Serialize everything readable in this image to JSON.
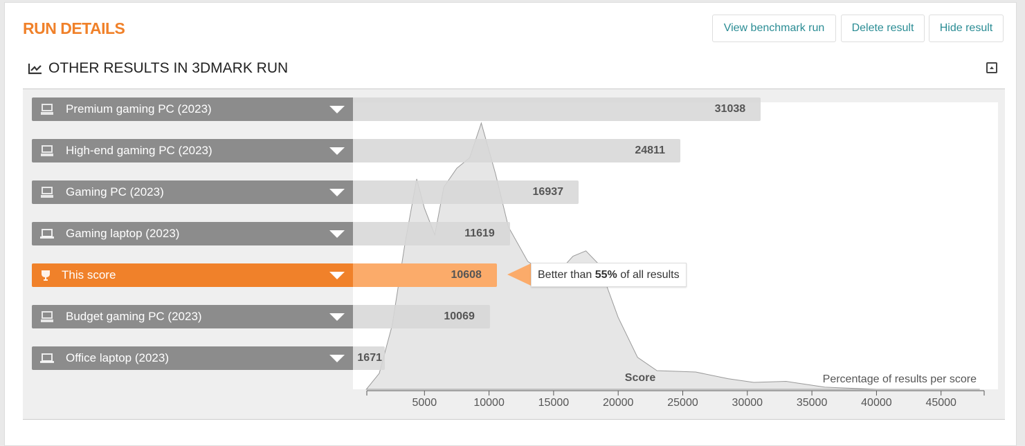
{
  "header": {
    "title": "RUN DETAILS",
    "buttons": [
      "View benchmark run",
      "Delete result",
      "Hide result"
    ]
  },
  "section": {
    "title": "OTHER RESULTS IN 3DMARK RUN",
    "icon": "line-chart-icon",
    "collapse_icon": "collapse-up-icon"
  },
  "colors": {
    "accent": "#f0812a",
    "bar_label": "#8c8c8c",
    "link": "#2a8c94"
  },
  "tooltip": {
    "prefix": "Better than ",
    "percent": "55%",
    "suffix": " of all results"
  },
  "chart_data": {
    "type": "bar",
    "xlabel": "Score",
    "density_label": "Percentage of results per score",
    "xlim": [
      500,
      48000
    ],
    "xticks": [
      5000,
      10000,
      15000,
      20000,
      25000,
      30000,
      35000,
      40000,
      45000
    ],
    "bars": [
      {
        "label": "Premium gaming PC (2023)",
        "value": 31038,
        "icon": "desktop-icon",
        "highlight": false
      },
      {
        "label": "High-end gaming PC (2023)",
        "value": 24811,
        "icon": "desktop-icon",
        "highlight": false
      },
      {
        "label": "Gaming PC (2023)",
        "value": 16937,
        "icon": "desktop-icon",
        "highlight": false
      },
      {
        "label": "Gaming laptop (2023)",
        "value": 11619,
        "icon": "laptop-icon",
        "highlight": false
      },
      {
        "label": "This score",
        "value": 10608,
        "icon": "trophy-icon",
        "highlight": true
      },
      {
        "label": "Budget gaming PC (2023)",
        "value": 10069,
        "icon": "desktop-icon",
        "highlight": false
      },
      {
        "label": "Office laptop (2023)",
        "value": 1671,
        "icon": "laptop-icon",
        "highlight": false
      }
    ],
    "density": {
      "x": [
        500,
        1500,
        2500,
        3500,
        4400,
        5000,
        5800,
        6500,
        7500,
        8500,
        9400,
        10500,
        11500,
        13000,
        15000,
        16500,
        17500,
        18500,
        20000,
        21500,
        23000,
        26000,
        28500,
        30500,
        33000,
        36000,
        40000,
        48000
      ],
      "y": [
        0,
        0.06,
        0.24,
        0.55,
        0.79,
        0.68,
        0.58,
        0.76,
        0.83,
        0.87,
        1.0,
        0.81,
        0.61,
        0.48,
        0.42,
        0.5,
        0.52,
        0.47,
        0.27,
        0.12,
        0.07,
        0.065,
        0.04,
        0.026,
        0.03,
        0.008,
        0,
        0
      ]
    }
  }
}
